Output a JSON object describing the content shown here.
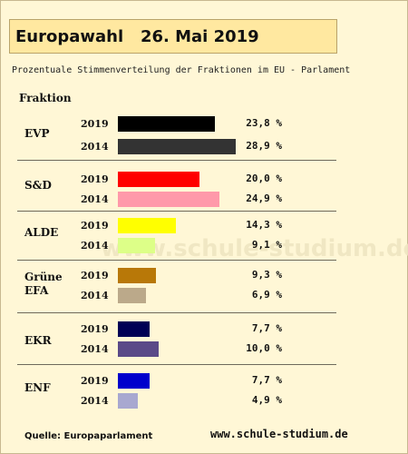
{
  "header": {
    "title": "Europawahl   26. Mai 2019",
    "subtitle": "Prozentuale Stimmenverteilung der Fraktionen im EU - Parlament"
  },
  "chart_data": {
    "type": "bar",
    "orientation": "horizontal",
    "column_header": "Fraktion",
    "max_value": 30,
    "groups": [
      {
        "name": "EVP",
        "rows": [
          {
            "year": "2019",
            "value": 23.8,
            "label": "23,8 %",
            "color": "#000000"
          },
          {
            "year": "2014",
            "value": 28.9,
            "label": "28,9 %",
            "color": "#333333"
          }
        ]
      },
      {
        "name": "S&D",
        "rows": [
          {
            "year": "2019",
            "value": 20.0,
            "label": "20,0 %",
            "color": "#ff0000"
          },
          {
            "year": "2014",
            "value": 24.9,
            "label": "24,9 %",
            "color": "#ff99aa"
          }
        ]
      },
      {
        "name": "ALDE",
        "rows": [
          {
            "year": "2019",
            "value": 14.3,
            "label": "14,3 %",
            "color": "#ffff00"
          },
          {
            "year": "2014",
            "value": 9.1,
            "label": "9,1 %",
            "color": "#ddff88"
          }
        ]
      },
      {
        "name": "Grüne\nEFA",
        "rows": [
          {
            "year": "2019",
            "value": 9.3,
            "label": "9,3 %",
            "color": "#b87808"
          },
          {
            "year": "2014",
            "value": 6.9,
            "label": "6,9 %",
            "color": "#bba98a"
          }
        ]
      },
      {
        "name": "EKR",
        "rows": [
          {
            "year": "2019",
            "value": 7.7,
            "label": "7,7 %",
            "color": "#000055"
          },
          {
            "year": "2014",
            "value": 10.0,
            "label": "10,0 %",
            "color": "#5a4a88"
          }
        ]
      },
      {
        "name": "ENF",
        "rows": [
          {
            "year": "2019",
            "value": 7.7,
            "label": "7,7 %",
            "color": "#0000cc"
          },
          {
            "year": "2014",
            "value": 4.9,
            "label": "4,9 %",
            "color": "#a8a8d0"
          }
        ]
      }
    ]
  },
  "footer": {
    "source": "Quelle: Europaparlament",
    "website": "www.schule-studium.de",
    "watermark": "www.schule-studium.de"
  }
}
